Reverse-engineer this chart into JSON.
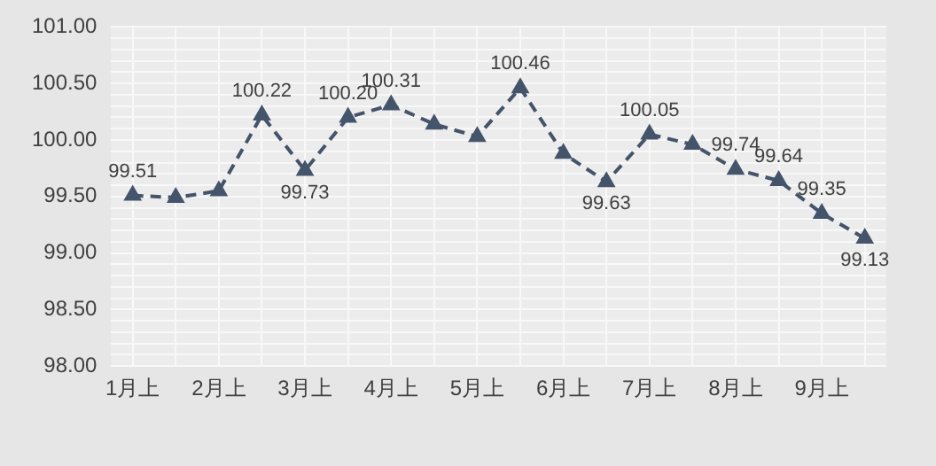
{
  "chart_data": {
    "type": "line",
    "categories": [
      "1月上",
      null,
      "2月上",
      null,
      "3月上",
      null,
      "4月上",
      null,
      "5月上",
      null,
      "6月上",
      null,
      "7月上",
      null,
      "8月上",
      null,
      "9月上",
      null
    ],
    "series": [
      {
        "color": "#44546a",
        "values": [
          99.51,
          99.49,
          99.55,
          100.22,
          99.73,
          100.2,
          100.31,
          100.14,
          100.03,
          100.46,
          99.88,
          99.63,
          100.05,
          99.96,
          99.74,
          99.64,
          99.35,
          99.13
        ],
        "value_labels": [
          "99.51",
          null,
          null,
          "100.22",
          "99.73",
          "100.20",
          "100.31",
          null,
          null,
          "100.46",
          null,
          "99.63",
          "100.05",
          null,
          "99.74",
          "99.64",
          "99.35",
          "99.13"
        ]
      }
    ],
    "ylim": [
      98,
      101
    ],
    "yticks": [
      {
        "value": 98,
        "label": "98.00"
      },
      {
        "value": 98.1,
        "label": null
      },
      {
        "value": 98.2,
        "label": null
      },
      {
        "value": 98.3,
        "label": null
      },
      {
        "value": 98.4,
        "label": null
      },
      {
        "value": 98.5,
        "label": "98.50"
      },
      {
        "value": 98.6,
        "label": null
      },
      {
        "value": 98.7,
        "label": null
      },
      {
        "value": 98.8,
        "label": null
      },
      {
        "value": 98.9,
        "label": null
      },
      {
        "value": 99,
        "label": "99.00"
      },
      {
        "value": 99.1,
        "label": null
      },
      {
        "value": 99.2,
        "label": null
      },
      {
        "value": 99.3,
        "label": null
      },
      {
        "value": 99.4,
        "label": null
      },
      {
        "value": 99.5,
        "label": "99.50"
      },
      {
        "value": 99.6,
        "label": null
      },
      {
        "value": 99.7,
        "label": null
      },
      {
        "value": 99.8,
        "label": null
      },
      {
        "value": 99.9,
        "label": null
      },
      {
        "value": 100,
        "label": "100.00"
      },
      {
        "value": 100.1,
        "label": null
      },
      {
        "value": 100.2,
        "label": null
      },
      {
        "value": 100.3,
        "label": null
      },
      {
        "value": 100.4,
        "label": null
      },
      {
        "value": 100.5,
        "label": "100.50"
      },
      {
        "value": 100.6,
        "label": null
      },
      {
        "value": 100.7,
        "label": null
      },
      {
        "value": 100.8,
        "label": null
      },
      {
        "value": 100.9,
        "label": null
      },
      {
        "value": 101,
        "label": "101.00"
      }
    ],
    "grid": true,
    "marker": "triangle",
    "line_style": "dashed",
    "legend": false
  }
}
